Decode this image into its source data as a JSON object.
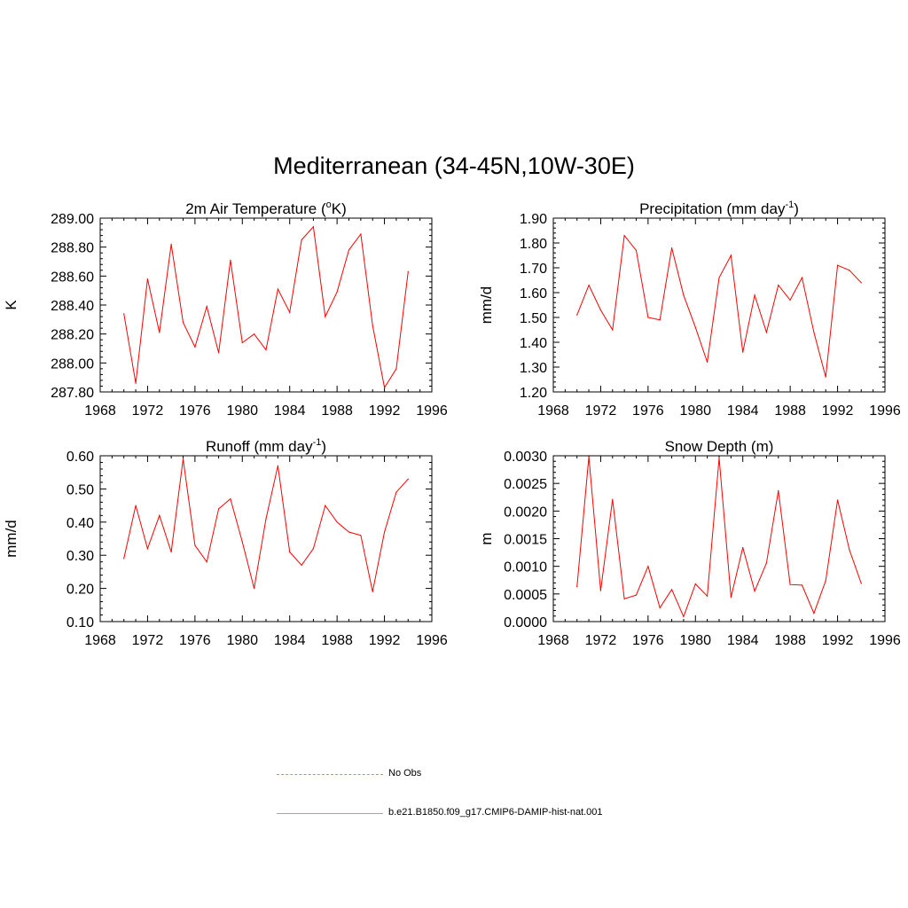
{
  "figure": {
    "title": "Mediterranean (34-45N,10W-30E)"
  },
  "legend": {
    "items": [
      {
        "label": "No Obs",
        "color": "#8f8fff",
        "style": "dashed"
      },
      {
        "label": "b.e21.B1850.f09_g17.CMIP6-DAMIP-hist-nat.001",
        "color": "#ff0000",
        "style": "solid"
      }
    ]
  },
  "chart_data": [
    {
      "type": "line",
      "title": "2m Air Temperature (oK)",
      "ylabel": "K",
      "xlim": [
        1968,
        1996
      ],
      "ylim": [
        287.8,
        289.0
      ],
      "xticks": [
        1968,
        1972,
        1976,
        1980,
        1984,
        1988,
        1992,
        1996
      ],
      "yticks": [
        "287.80",
        "288.00",
        "288.20",
        "288.40",
        "288.60",
        "288.80",
        "289.00"
      ],
      "series": [
        {
          "name": "b.e21.B1850.f09_g17.CMIP6-DAMIP-hist-nat.001",
          "color": "#ff0000",
          "x": [
            1970,
            1971,
            1972,
            1973,
            1974,
            1975,
            1976,
            1977,
            1978,
            1979,
            1980,
            1981,
            1982,
            1983,
            1984,
            1985,
            1986,
            1987,
            1988,
            1989,
            1990,
            1991,
            1992,
            1993,
            1994
          ],
          "y": [
            288.34,
            287.86,
            288.58,
            288.21,
            288.82,
            288.28,
            288.11,
            288.39,
            288.07,
            288.71,
            288.14,
            288.2,
            288.09,
            288.51,
            288.35,
            288.85,
            288.94,
            288.32,
            288.49,
            288.78,
            288.89,
            288.26,
            287.83,
            287.96,
            288.63
          ]
        }
      ]
    },
    {
      "type": "line",
      "title": "Precipitation (mm day-1)",
      "ylabel": "mm/d",
      "xlim": [
        1968,
        1996
      ],
      "ylim": [
        1.2,
        1.9
      ],
      "xticks": [
        1968,
        1972,
        1976,
        1980,
        1984,
        1988,
        1992,
        1996
      ],
      "yticks": [
        "1.20",
        "1.30",
        "1.40",
        "1.50",
        "1.60",
        "1.70",
        "1.80",
        "1.90"
      ],
      "series": [
        {
          "name": "b.e21.B1850.f09_g17.CMIP6-DAMIP-hist-nat.001",
          "color": "#ff0000",
          "x": [
            1970,
            1971,
            1972,
            1973,
            1974,
            1975,
            1976,
            1977,
            1978,
            1979,
            1980,
            1981,
            1982,
            1983,
            1984,
            1985,
            1986,
            1987,
            1988,
            1989,
            1990,
            1991,
            1992,
            1993,
            1994
          ],
          "y": [
            1.51,
            1.63,
            1.53,
            1.45,
            1.83,
            1.77,
            1.5,
            1.49,
            1.78,
            1.59,
            1.46,
            1.32,
            1.66,
            1.75,
            1.36,
            1.59,
            1.44,
            1.63,
            1.57,
            1.66,
            1.44,
            1.26,
            1.71,
            1.69,
            1.64
          ]
        }
      ]
    },
    {
      "type": "line",
      "title": "Runoff (mm day-1)",
      "ylabel": "mm/d",
      "xlim": [
        1968,
        1996
      ],
      "ylim": [
        0.1,
        0.6
      ],
      "xticks": [
        1968,
        1972,
        1976,
        1980,
        1984,
        1988,
        1992,
        1996
      ],
      "yticks": [
        "0.10",
        "0.20",
        "0.30",
        "0.40",
        "0.50",
        "0.60"
      ],
      "series": [
        {
          "name": "b.e21.B1850.f09_g17.CMIP6-DAMIP-hist-nat.001",
          "color": "#ff0000",
          "x": [
            1970,
            1971,
            1972,
            1973,
            1974,
            1975,
            1976,
            1977,
            1978,
            1979,
            1980,
            1981,
            1982,
            1983,
            1984,
            1985,
            1986,
            1987,
            1988,
            1989,
            1990,
            1991,
            1992,
            1993,
            1994
          ],
          "y": [
            0.29,
            0.45,
            0.32,
            0.42,
            0.31,
            0.59,
            0.33,
            0.28,
            0.44,
            0.47,
            0.34,
            0.2,
            0.41,
            0.57,
            0.31,
            0.27,
            0.32,
            0.45,
            0.4,
            0.37,
            0.36,
            0.19,
            0.37,
            0.49,
            0.53
          ]
        }
      ]
    },
    {
      "type": "line",
      "title": "Snow Depth (m)",
      "ylabel": "m",
      "xlim": [
        1968,
        1996
      ],
      "ylim": [
        0.0,
        0.003
      ],
      "xticks": [
        1968,
        1972,
        1976,
        1980,
        1984,
        1988,
        1992,
        1996
      ],
      "yticks": [
        "0.0000",
        "0.0005",
        "0.0010",
        "0.0015",
        "0.0020",
        "0.0025",
        "0.0030"
      ],
      "series": [
        {
          "name": "b.e21.B1850.f09_g17.CMIP6-DAMIP-hist-nat.001",
          "color": "#ff0000",
          "x": [
            1970,
            1971,
            1972,
            1973,
            1974,
            1975,
            1976,
            1977,
            1978,
            1979,
            1980,
            1981,
            1982,
            1983,
            1984,
            1985,
            1986,
            1987,
            1988,
            1989,
            1990,
            1991,
            1992,
            1993,
            1994
          ],
          "y": [
            0.00063,
            0.00298,
            0.00056,
            0.00221,
            0.00041,
            0.00048,
            0.001,
            0.00025,
            0.00058,
            9e-05,
            0.00068,
            0.00046,
            0.00296,
            0.00044,
            0.00134,
            0.00055,
            0.00106,
            0.00237,
            0.00067,
            0.00066,
            0.00015,
            0.00074,
            0.0022,
            0.0013,
            0.00069
          ]
        }
      ]
    }
  ]
}
